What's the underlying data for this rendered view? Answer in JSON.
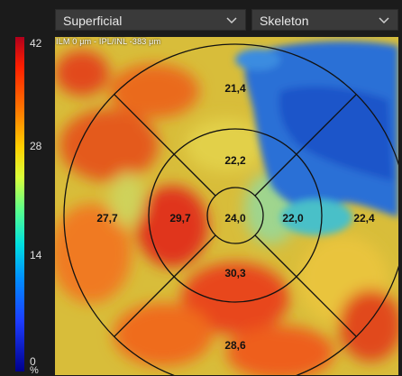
{
  "toolbar": {
    "layer_dropdown": {
      "selected": "Superficial"
    },
    "mode_dropdown": {
      "selected": "Skeleton"
    }
  },
  "color_scale": {
    "max_label": "42",
    "mid_high_label": "28",
    "mid_low_label": "14",
    "min_label": "0",
    "unit": "%"
  },
  "map": {
    "header": "ILM 0 μm - IPL/INL -383 μm",
    "sectors": {
      "outer_superior": "21,4",
      "inner_superior": "22,2",
      "outer_nasal_left": "27,7",
      "inner_left": "29,7",
      "center": "24,0",
      "inner_right": "22,0",
      "outer_right": "22,4",
      "inner_inferior": "30,3",
      "outer_inferior": "28,6"
    }
  }
}
